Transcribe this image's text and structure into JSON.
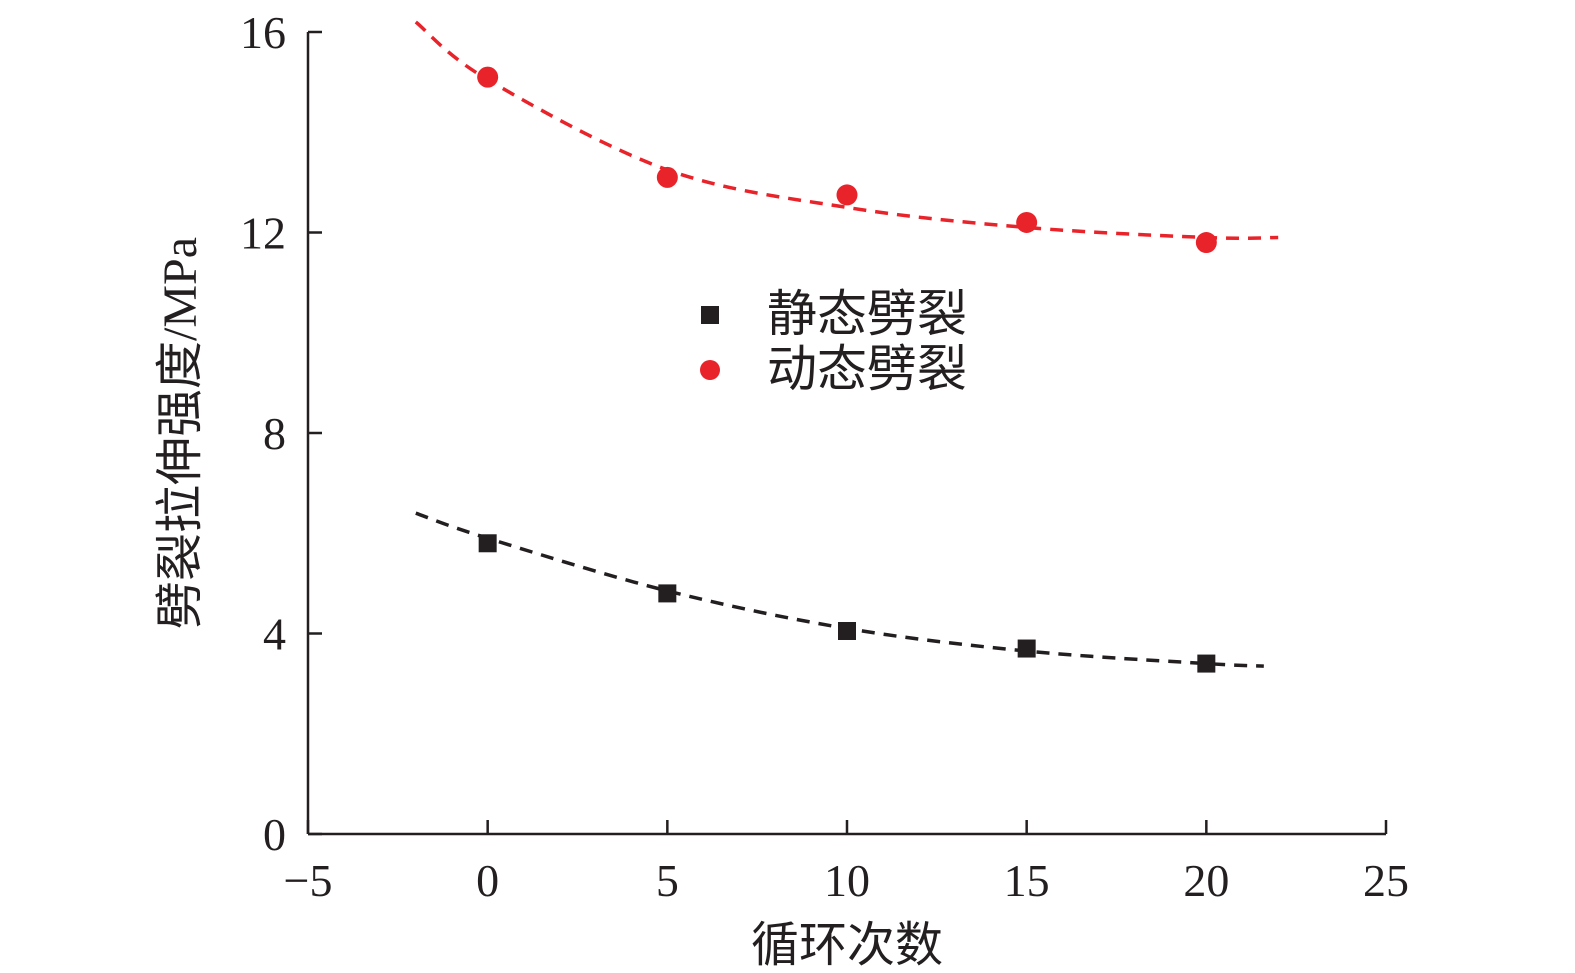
{
  "colors": {
    "static": "#231f20",
    "dynamic": "#e8232a",
    "axis": "#231f20"
  },
  "chart_data": {
    "type": "scatter",
    "xlabel": "循环次数",
    "ylabel": "劈裂拉伸强度/MPa",
    "xlim": [
      -5,
      25
    ],
    "ylim": [
      0,
      16
    ],
    "xticks": [
      -5,
      0,
      5,
      10,
      15,
      20,
      25
    ],
    "xtick_labels": [
      "−5",
      "0",
      "5",
      "10",
      "15",
      "20",
      "25"
    ],
    "yticks": [
      0,
      4,
      8,
      12,
      16
    ],
    "ytick_labels": [
      "0",
      "4",
      "8",
      "12",
      "16"
    ],
    "legend_position": "center",
    "grid": false,
    "series": [
      {
        "name": "静态劈裂",
        "marker": "square",
        "color": "#231f20",
        "x": [
          0,
          5,
          10,
          15,
          20
        ],
        "y": [
          5.8,
          4.8,
          4.05,
          3.7,
          3.4
        ],
        "fit": {
          "style": "dashed",
          "x_range": [
            -2,
            21.6
          ],
          "x": [
            -2,
            0,
            5,
            10,
            15,
            20,
            21.6
          ],
          "y": [
            6.4,
            5.9,
            4.85,
            4.1,
            3.65,
            3.4,
            3.35
          ]
        }
      },
      {
        "name": "动态劈裂",
        "marker": "circle",
        "color": "#e8232a",
        "x": [
          0,
          5,
          10,
          15,
          20
        ],
        "y": [
          15.1,
          13.1,
          12.75,
          12.2,
          11.8
        ],
        "fit": {
          "style": "dashed",
          "x_range": [
            -2,
            22
          ],
          "x": [
            -2,
            0,
            5,
            10,
            15,
            20,
            22
          ],
          "y": [
            16.2,
            15.05,
            13.25,
            12.5,
            12.1,
            11.9,
            11.9
          ]
        }
      }
    ]
  }
}
